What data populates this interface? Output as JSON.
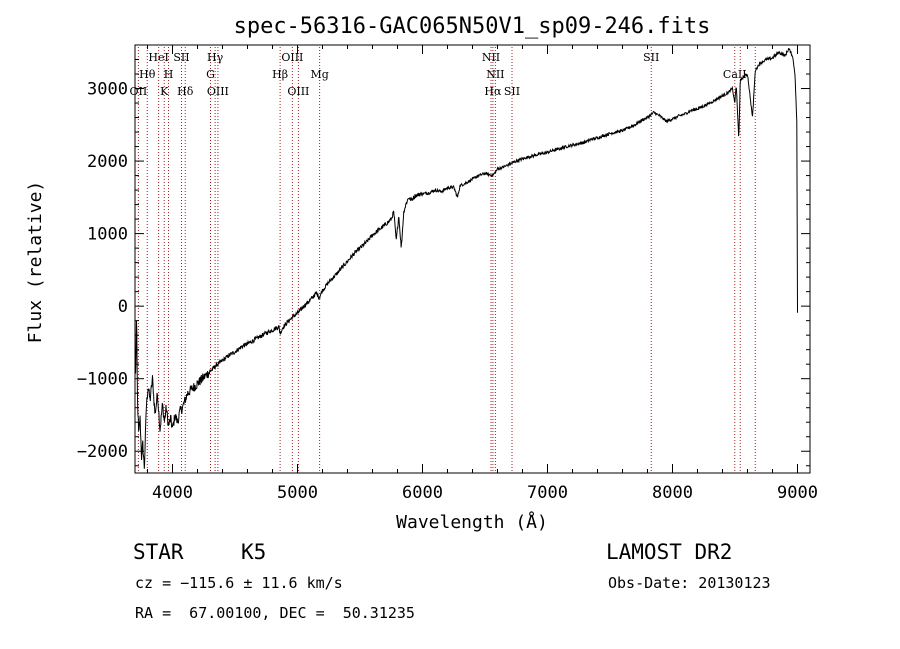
{
  "chart_data": {
    "type": "line",
    "title": "spec-56316-GAC065N50V1_sp09-246.fits",
    "xlabel": "Wavelength (Å)",
    "ylabel": "Flux (relative)",
    "xlim": [
      3700,
      9100
    ],
    "ylim": [
      -2300,
      3600
    ],
    "x_ticks": [
      {
        "value": 4000,
        "label": "4000"
      },
      {
        "value": 5000,
        "label": "5000"
      },
      {
        "value": 6000,
        "label": "6000"
      },
      {
        "value": 7000,
        "label": "7000"
      },
      {
        "value": 8000,
        "label": "8000"
      },
      {
        "value": 9000,
        "label": "9000"
      }
    ],
    "y_ticks": [
      {
        "value": -2000,
        "label": "−2000"
      },
      {
        "value": -1000,
        "label": "−1000"
      },
      {
        "value": 0,
        "label": "0"
      },
      {
        "value": 1000,
        "label": "1000"
      },
      {
        "value": 2000,
        "label": "2000"
      },
      {
        "value": 3000,
        "label": "3000"
      }
    ],
    "grid": false,
    "line_color": "#000000",
    "marker_color": "#a02020",
    "spectrum": {
      "x": [
        3705,
        3712,
        3720,
        3730,
        3740,
        3752,
        3762,
        3775,
        3790,
        3805,
        3820,
        3840,
        3860,
        3880,
        3900,
        3920,
        3935,
        3950,
        3968,
        3985,
        4000,
        4020,
        4040,
        4060,
        4080,
        4100,
        4120,
        4150,
        4180,
        4210,
        4240,
        4270,
        4300,
        4330,
        4360,
        4400,
        4450,
        4500,
        4550,
        4600,
        4650,
        4700,
        4750,
        4800,
        4850,
        4861,
        4880,
        4920,
        4960,
        5000,
        5050,
        5100,
        5150,
        5175,
        5200,
        5250,
        5300,
        5350,
        5400,
        5450,
        5500,
        5550,
        5600,
        5650,
        5700,
        5750,
        5770,
        5790,
        5810,
        5830,
        5850,
        5870,
        5890,
        5910,
        5940,
        5970,
        6000,
        6050,
        6100,
        6150,
        6200,
        6250,
        6280,
        6300,
        6350,
        6400,
        6450,
        6500,
        6563,
        6600,
        6650,
        6700,
        6750,
        6800,
        6850,
        6900,
        6950,
        7000,
        7050,
        7100,
        7150,
        7200,
        7250,
        7300,
        7350,
        7400,
        7450,
        7500,
        7550,
        7600,
        7650,
        7700,
        7750,
        7800,
        7850,
        7900,
        7950,
        8000,
        8050,
        8100,
        8150,
        8200,
        8250,
        8300,
        8350,
        8400,
        8450,
        8480,
        8498,
        8510,
        8530,
        8542,
        8560,
        8600,
        8640,
        8662,
        8680,
        8700,
        8750,
        8800,
        8850,
        8900,
        8930,
        8960,
        8980,
        8995,
        9000
      ],
      "y": [
        -950,
        -100,
        -1300,
        -1800,
        -1500,
        -2100,
        -1900,
        -2250,
        -1400,
        -1100,
        -1300,
        -1000,
        -1500,
        -1200,
        -1700,
        -1350,
        -1600,
        -1400,
        -1650,
        -1550,
        -1700,
        -1500,
        -1600,
        -1450,
        -1400,
        -1300,
        -1200,
        -1150,
        -1100,
        -1050,
        -1000,
        -950,
        -900,
        -850,
        -800,
        -750,
        -680,
        -630,
        -560,
        -520,
        -470,
        -420,
        -370,
        -330,
        -280,
        -380,
        -300,
        -220,
        -150,
        -100,
        0,
        80,
        180,
        120,
        220,
        330,
        420,
        520,
        620,
        720,
        800,
        880,
        980,
        1050,
        1120,
        1200,
        1300,
        900,
        1250,
        800,
        1300,
        1420,
        1500,
        1460,
        1520,
        1540,
        1550,
        1560,
        1600,
        1580,
        1630,
        1640,
        1500,
        1660,
        1700,
        1750,
        1800,
        1830,
        1800,
        1890,
        1920,
        1960,
        2000,
        2030,
        2060,
        2080,
        2100,
        2120,
        2150,
        2170,
        2200,
        2220,
        2240,
        2260,
        2300,
        2320,
        2350,
        2380,
        2400,
        2420,
        2460,
        2500,
        2560,
        2600,
        2670,
        2620,
        2550,
        2580,
        2620,
        2650,
        2700,
        2720,
        2760,
        2800,
        2850,
        2900,
        2950,
        3000,
        2800,
        3050,
        2300,
        3100,
        3150,
        3200,
        2600,
        3250,
        3300,
        3350,
        3400,
        3420,
        3500,
        3450,
        3550,
        3450,
        3200,
        2500,
        -100
      ]
    },
    "markers": [
      {
        "x": 3727,
        "label": "OII",
        "row": 3
      },
      {
        "x": 3798,
        "label": "Hθ",
        "row": 2
      },
      {
        "x": 3889,
        "label": "HeI",
        "row": 1
      },
      {
        "x": 3934,
        "label": "K",
        "row": 3
      },
      {
        "x": 3968,
        "label": "H",
        "row": 2
      },
      {
        "x": 4072,
        "label": "SII",
        "row": 1
      },
      {
        "x": 4102,
        "label": "Hδ",
        "row": 3
      },
      {
        "x": 4304,
        "label": "G",
        "row": 2
      },
      {
        "x": 4341,
        "label": "Hγ",
        "row": 1
      },
      {
        "x": 4363,
        "label": "OIII",
        "row": 3
      },
      {
        "x": 4861,
        "label": "Hβ",
        "row": 2
      },
      {
        "x": 4959,
        "label": "OIII",
        "row": 1
      },
      {
        "x": 5007,
        "label": "OIII",
        "row": 3
      },
      {
        "x": 5177,
        "label": "Mg",
        "row": 2
      },
      {
        "x": 6548,
        "label": "NII",
        "row": 1
      },
      {
        "x": 6563,
        "label": "Hα",
        "row": 3
      },
      {
        "x": 6583,
        "label": "NII",
        "row": 2
      },
      {
        "x": 6716,
        "label": "SII",
        "row": 3
      },
      {
        "x": 7830,
        "label": "SII",
        "row": 1
      },
      {
        "x": 8498,
        "label": "CaII",
        "row": 2
      },
      {
        "x": 8542,
        "label": "",
        "row": 2
      },
      {
        "x": 8662,
        "label": "",
        "row": 2
      }
    ]
  },
  "info": {
    "object_class": "STAR",
    "subclass": "K5",
    "cz": "cz = −115.6 ± 11.6 km/s",
    "coords": "RA =  67.00100, DEC =  50.31235",
    "survey": "LAMOST DR2",
    "obs_date": "Obs-Date: 20130123"
  }
}
